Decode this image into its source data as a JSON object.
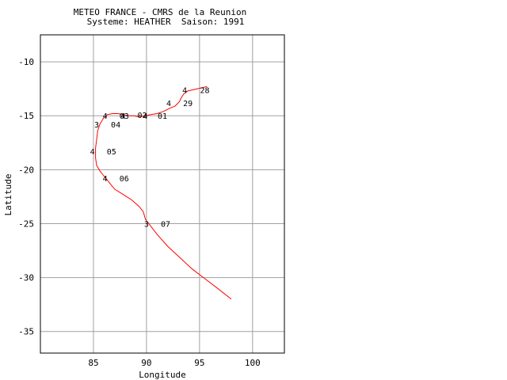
{
  "chart_data": {
    "type": "line",
    "title": "METEO FRANCE - CMRS de la Reunion",
    "subtitle": "Systeme: HEATHER  Saison: 1991",
    "xlabel": "Longitude",
    "ylabel": "Latitude",
    "xlim": [
      80,
      103
    ],
    "ylim": [
      -37,
      -7.5
    ],
    "xticks": [
      85,
      90,
      95,
      100
    ],
    "yticks": [
      -10,
      -15,
      -20,
      -25,
      -30,
      -35
    ],
    "grid": true,
    "legend": "none",
    "track_color": "#ff0000",
    "series": [
      {
        "x": [
          95.7,
          94.8,
          93.9,
          93.5,
          93.3,
          93.1,
          92.7,
          92.2,
          91.6,
          91.0,
          90.4,
          89.9,
          89.3,
          88.8,
          88.3,
          87.8,
          87.3,
          86.8,
          86.3,
          85.9,
          85.6,
          85.4,
          85.3,
          85.2,
          85.2,
          85.3,
          85.6,
          86.0,
          86.5,
          87.0,
          87.8,
          88.6,
          89.3,
          89.7,
          89.9,
          90.3,
          91.0,
          92.0,
          93.2,
          94.3,
          95.5,
          96.7,
          98.0
        ],
        "y": [
          -12.3,
          -12.5,
          -12.7,
          -13.0,
          -13.3,
          -13.7,
          -14.1,
          -14.3,
          -14.6,
          -14.8,
          -14.9,
          -15.0,
          -15.1,
          -15.0,
          -15.0,
          -14.9,
          -14.8,
          -14.8,
          -14.9,
          -15.3,
          -15.8,
          -16.4,
          -17.2,
          -18.0,
          -18.9,
          -19.6,
          -20.1,
          -20.6,
          -21.2,
          -21.8,
          -22.3,
          -22.8,
          -23.4,
          -23.9,
          -24.6,
          -25.1,
          -26.0,
          -27.1,
          -28.2,
          -29.2,
          -30.1,
          -31.0,
          -32.0
        ]
      }
    ],
    "annotations": [
      {
        "text": "4",
        "x": 93.6,
        "y": -12.6
      },
      {
        "text": "28",
        "x": 95.5,
        "y": -12.6
      },
      {
        "text": "4",
        "x": 92.1,
        "y": -13.8
      },
      {
        "text": "29",
        "x": 93.9,
        "y": -13.8
      },
      {
        "text": "4",
        "x": 89.9,
        "y": -15.0
      },
      {
        "text": "01",
        "x": 91.5,
        "y": -15.0
      },
      {
        "text": "02",
        "x": 89.6,
        "y": -14.9
      },
      {
        "text": "4",
        "x": 87.8,
        "y": -15.0
      },
      {
        "text": "03",
        "x": 87.9,
        "y": -15.0
      },
      {
        "text": "4",
        "x": 86.1,
        "y": -15.0
      },
      {
        "text": "3",
        "x": 85.3,
        "y": -15.8
      },
      {
        "text": "04",
        "x": 87.1,
        "y": -15.8
      },
      {
        "text": "4",
        "x": 84.9,
        "y": -18.3
      },
      {
        "text": "05",
        "x": 86.7,
        "y": -18.3
      },
      {
        "text": "4",
        "x": 86.1,
        "y": -20.8
      },
      {
        "text": "06",
        "x": 87.9,
        "y": -20.8
      },
      {
        "text": "3",
        "x": 90.0,
        "y": -25.0
      },
      {
        "text": "07",
        "x": 91.8,
        "y": -25.0
      }
    ]
  }
}
